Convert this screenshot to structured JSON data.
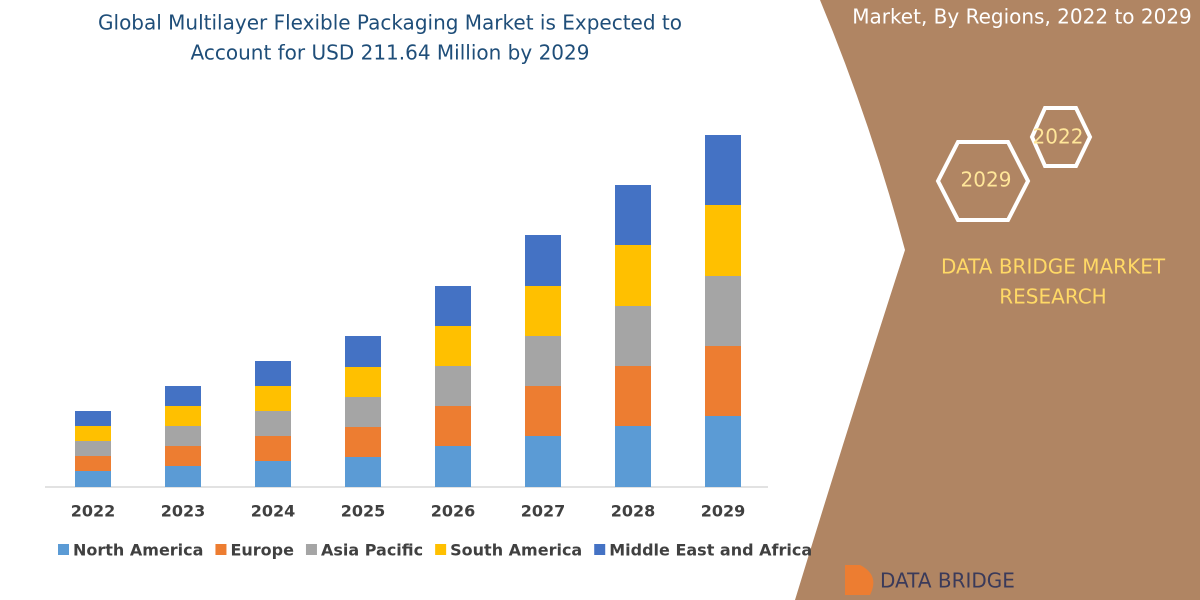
{
  "chart_data": {
    "type": "stacked_bar",
    "title": [
      "Global Multilayer Flexible Packaging Market is Expected to",
      "Account for USD 211.64 Million by 2029"
    ],
    "categories": [
      "2022",
      "2023",
      "2024",
      "2025",
      "2026",
      "2027",
      "2028",
      "2029"
    ],
    "series": [
      {
        "name": "North America",
        "color": "#5b9bd5",
        "values": [
          16,
          21,
          26,
          30,
          41,
          51,
          61,
          71
        ]
      },
      {
        "name": "Europe",
        "color": "#ed7d31",
        "values": [
          15,
          20,
          25,
          30,
          40,
          50,
          60,
          70
        ]
      },
      {
        "name": "Asia Pacific",
        "color": "#a5a5a5",
        "values": [
          15,
          20,
          25,
          30,
          40,
          50,
          60,
          70
        ]
      },
      {
        "name": "South America",
        "color": "#ffc000",
        "values": [
          15,
          20,
          25,
          30,
          40,
          50,
          61,
          71
        ]
      },
      {
        "name": "Middle East and Africa",
        "color": "#4472c4",
        "values": [
          15,
          20,
          25,
          31,
          40,
          51,
          60,
          70
        ]
      }
    ],
    "legend": "bottom"
  },
  "panel": {
    "heading": "Market, By Regions, 2022 to 2029",
    "badges": [
      "2022",
      "2029"
    ],
    "brand": [
      "DATA BRIDGE MARKET",
      "RESEARCH"
    ],
    "logo": "DATA BRIDGE"
  }
}
